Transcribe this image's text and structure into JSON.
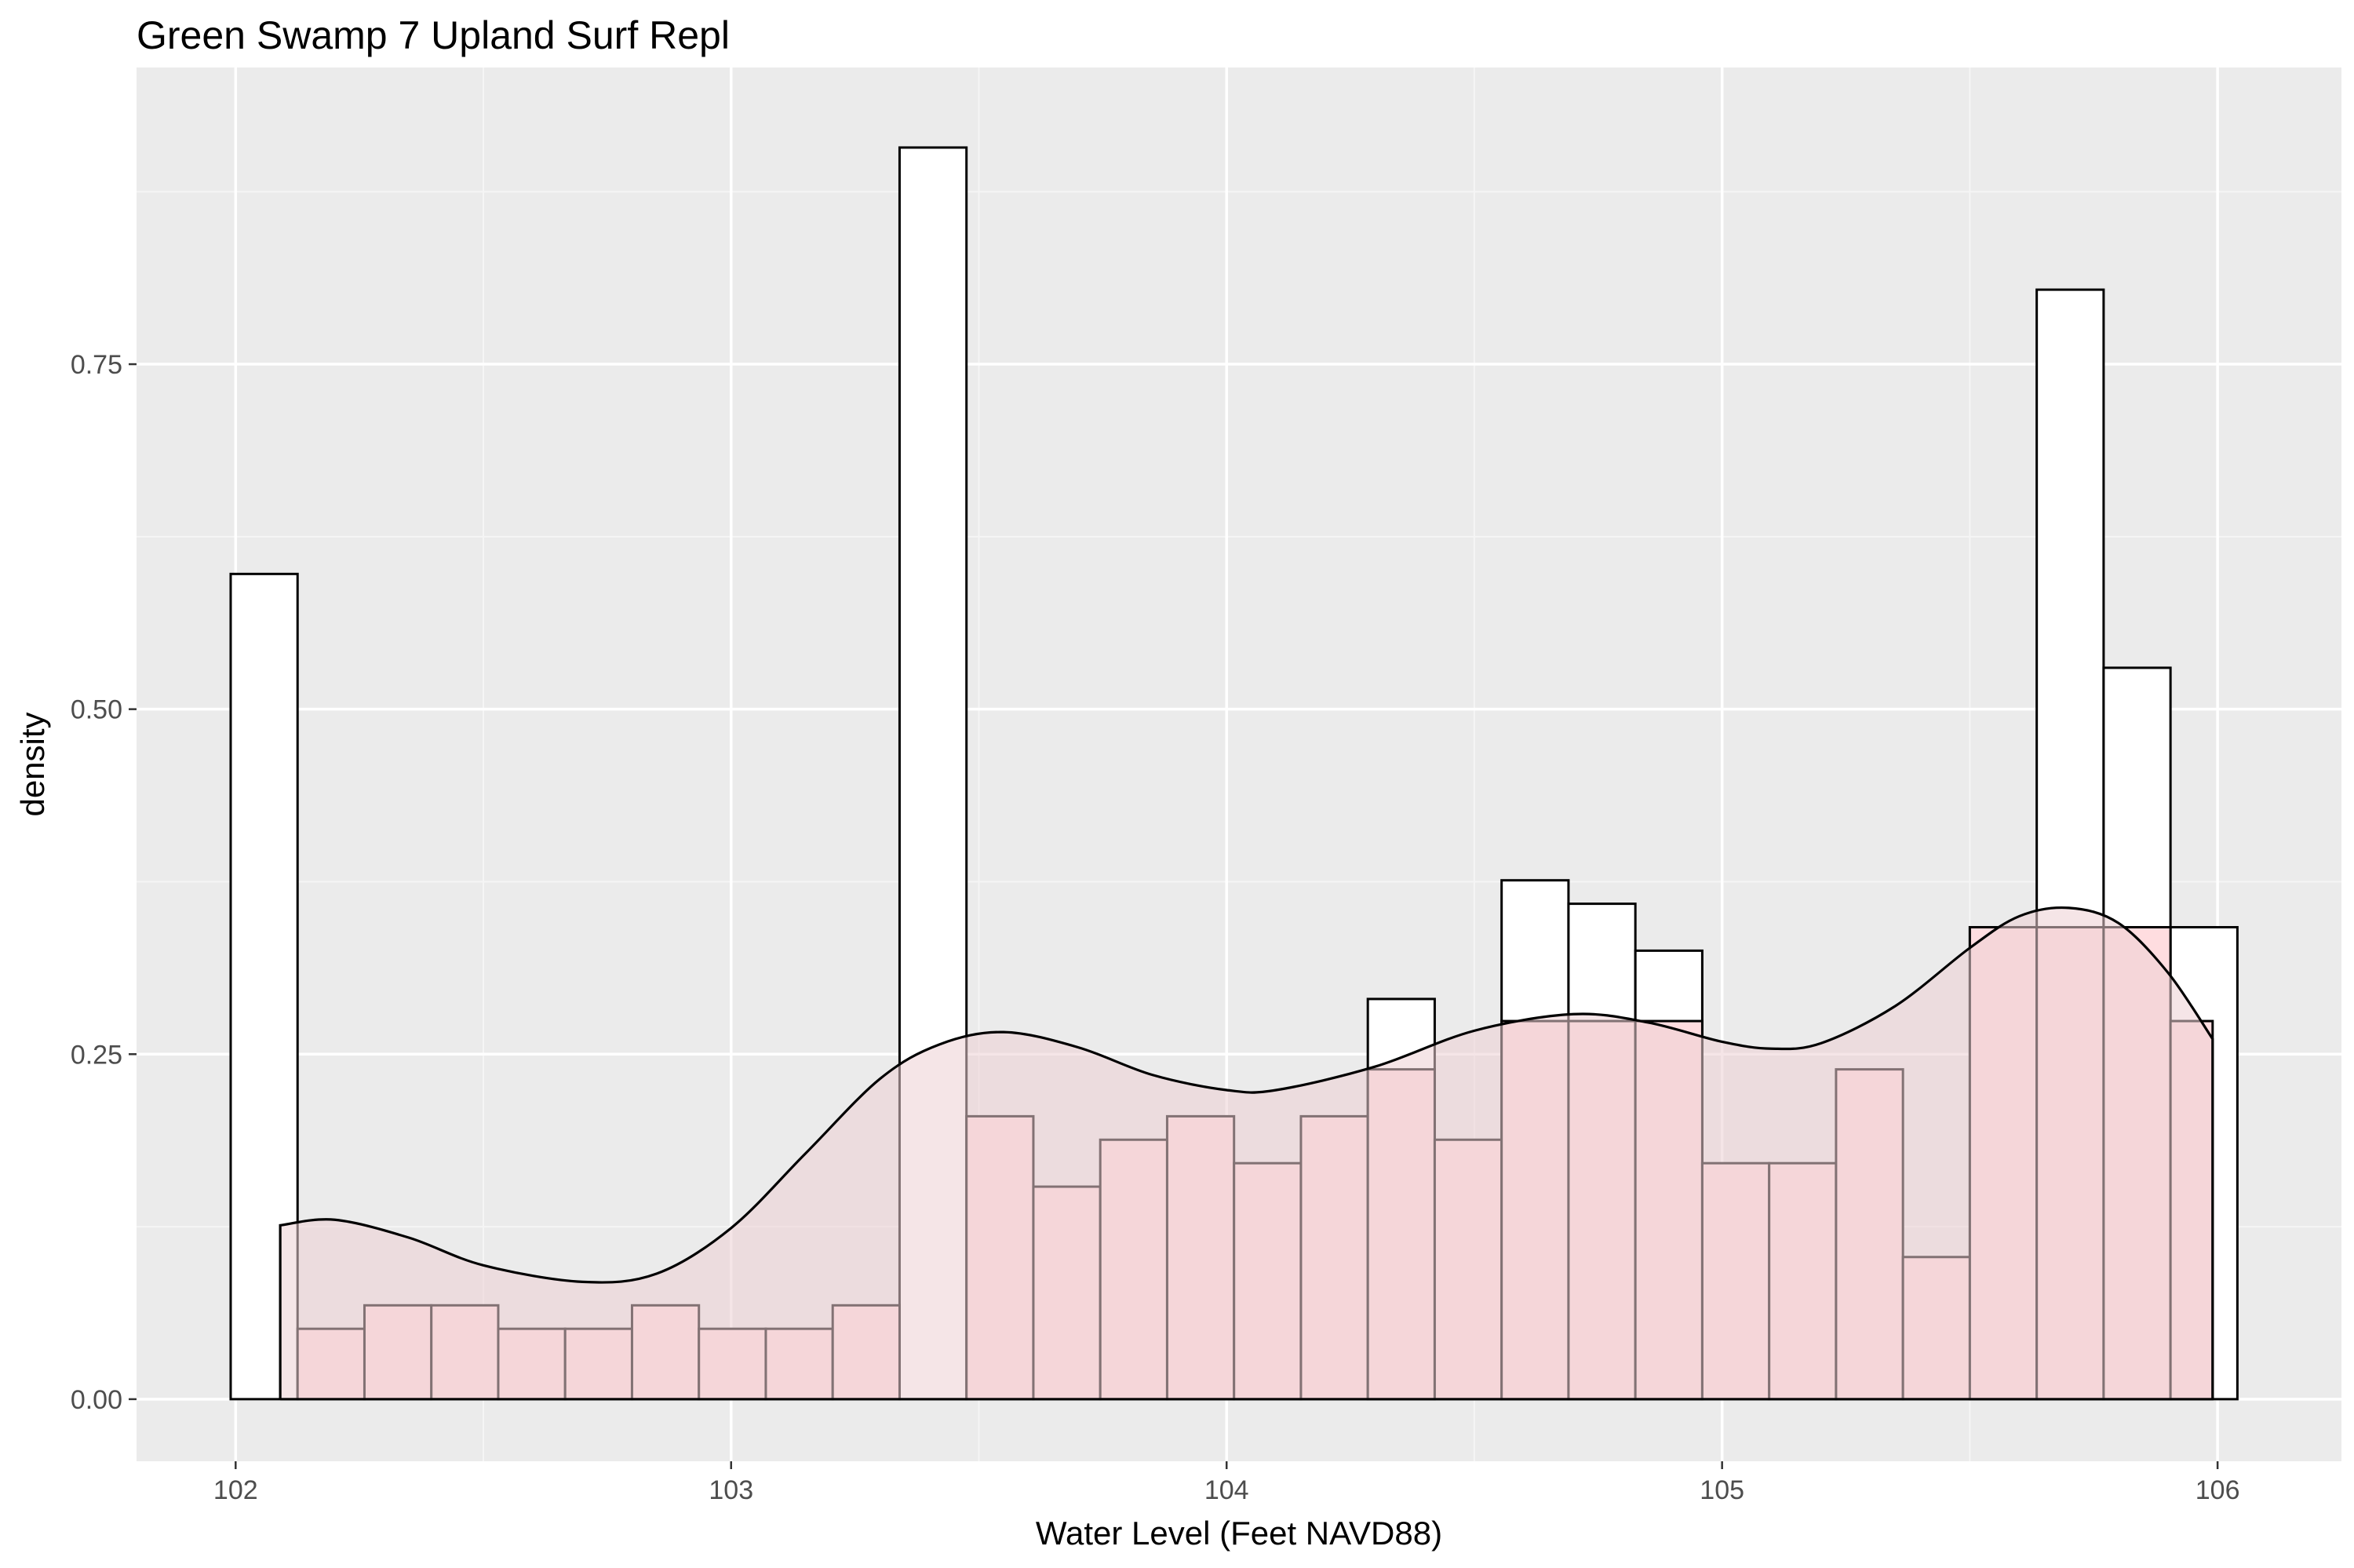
{
  "chart_data": {
    "type": "histogram",
    "title": "Green Swamp 7 Upland Surf Repl",
    "xlabel": "Water Level (Feet NAVD88)",
    "ylabel": "density",
    "xlim": [
      101.8,
      106.25
    ],
    "ylim": [
      -0.045,
      0.965
    ],
    "x_ticks": [
      {
        "value": 102,
        "label": "102"
      },
      {
        "value": 103,
        "label": "103"
      },
      {
        "value": 104,
        "label": "104"
      },
      {
        "value": 105,
        "label": "105"
      },
      {
        "value": 106,
        "label": "106"
      }
    ],
    "y_ticks": [
      {
        "value": 0.0,
        "label": "0.00"
      },
      {
        "value": 0.25,
        "label": "0.25"
      },
      {
        "value": 0.5,
        "label": "0.50"
      },
      {
        "value": 0.75,
        "label": "0.75"
      }
    ],
    "grid": true,
    "colors": {
      "panel_background": "#ebebeb",
      "grid_major": "#ffffff",
      "grid_minor": "#f5f5f5",
      "bar_outline": "#000000",
      "full_series_fill": "#ffffff",
      "highlight_series_fill": "#ffdde0",
      "density_fill": "#eccfd3",
      "density_line": "#000000"
    },
    "series": [
      {
        "type": "histogram",
        "fill": "white",
        "bins": [
          {
            "x0": 101.99,
            "x1": 102.125,
            "density": 0.598
          },
          {
            "x0": 103.34,
            "x1": 103.475,
            "density": 0.907
          },
          {
            "x0": 104.285,
            "x1": 104.42,
            "density": 0.29
          },
          {
            "x0": 104.555,
            "x1": 104.69,
            "density": 0.376
          },
          {
            "x0": 104.69,
            "x1": 104.825,
            "density": 0.359
          },
          {
            "x0": 104.825,
            "x1": 104.96,
            "density": 0.325
          },
          {
            "x0": 105.5,
            "x1": 105.635,
            "density": 0.342
          },
          {
            "x0": 105.635,
            "x1": 105.77,
            "density": 0.804
          },
          {
            "x0": 105.77,
            "x1": 105.905,
            "density": 0.53
          },
          {
            "x0": 105.905,
            "x1": 106.04,
            "density": 0.342
          }
        ]
      },
      {
        "type": "histogram",
        "fill": "pink",
        "bins": [
          {
            "x0": 102.125,
            "x1": 102.26,
            "density": 0.051
          },
          {
            "x0": 102.26,
            "x1": 102.395,
            "density": 0.068
          },
          {
            "x0": 102.395,
            "x1": 102.53,
            "density": 0.068
          },
          {
            "x0": 102.53,
            "x1": 102.665,
            "density": 0.051
          },
          {
            "x0": 102.665,
            "x1": 102.8,
            "density": 0.051
          },
          {
            "x0": 102.8,
            "x1": 102.935,
            "density": 0.068
          },
          {
            "x0": 102.935,
            "x1": 103.07,
            "density": 0.051
          },
          {
            "x0": 103.07,
            "x1": 103.205,
            "density": 0.051
          },
          {
            "x0": 103.205,
            "x1": 103.34,
            "density": 0.068
          },
          {
            "x0": 103.475,
            "x1": 103.61,
            "density": 0.205
          },
          {
            "x0": 103.61,
            "x1": 103.745,
            "density": 0.154
          },
          {
            "x0": 103.745,
            "x1": 103.88,
            "density": 0.188
          },
          {
            "x0": 103.88,
            "x1": 104.015,
            "density": 0.205
          },
          {
            "x0": 104.015,
            "x1": 104.15,
            "density": 0.171
          },
          {
            "x0": 104.15,
            "x1": 104.285,
            "density": 0.205
          },
          {
            "x0": 104.285,
            "x1": 104.42,
            "density": 0.239
          },
          {
            "x0": 104.42,
            "x1": 104.555,
            "density": 0.188
          },
          {
            "x0": 104.555,
            "x1": 104.69,
            "density": 0.274
          },
          {
            "x0": 104.69,
            "x1": 104.825,
            "density": 0.274
          },
          {
            "x0": 104.825,
            "x1": 104.96,
            "density": 0.274
          },
          {
            "x0": 104.96,
            "x1": 105.095,
            "density": 0.171
          },
          {
            "x0": 105.095,
            "x1": 105.23,
            "density": 0.171
          },
          {
            "x0": 105.23,
            "x1": 105.365,
            "density": 0.239
          },
          {
            "x0": 105.365,
            "x1": 105.5,
            "density": 0.103
          },
          {
            "x0": 105.5,
            "x1": 105.635,
            "density": 0.342
          },
          {
            "x0": 105.635,
            "x1": 105.77,
            "density": 0.342
          },
          {
            "x0": 105.77,
            "x1": 105.905,
            "density": 0.342
          },
          {
            "x0": 105.905,
            "x1": 105.99,
            "density": 0.274
          }
        ]
      },
      {
        "type": "density",
        "points": [
          [
            102.09,
            0.126
          ],
          [
            102.2,
            0.13
          ],
          [
            102.35,
            0.117
          ],
          [
            102.5,
            0.097
          ],
          [
            102.7,
            0.085
          ],
          [
            102.85,
            0.091
          ],
          [
            103.0,
            0.124
          ],
          [
            103.15,
            0.178
          ],
          [
            103.3,
            0.232
          ],
          [
            103.42,
            0.257
          ],
          [
            103.55,
            0.266
          ],
          [
            103.7,
            0.255
          ],
          [
            103.85,
            0.235
          ],
          [
            104.0,
            0.224
          ],
          [
            104.1,
            0.224
          ],
          [
            104.3,
            0.241
          ],
          [
            104.5,
            0.267
          ],
          [
            104.7,
            0.279
          ],
          [
            104.85,
            0.273
          ],
          [
            105.0,
            0.259
          ],
          [
            105.1,
            0.254
          ],
          [
            105.2,
            0.258
          ],
          [
            105.35,
            0.285
          ],
          [
            105.5,
            0.327
          ],
          [
            105.6,
            0.35
          ],
          [
            105.7,
            0.356
          ],
          [
            105.8,
            0.345
          ],
          [
            105.9,
            0.309
          ],
          [
            105.99,
            0.261
          ]
        ]
      }
    ]
  }
}
